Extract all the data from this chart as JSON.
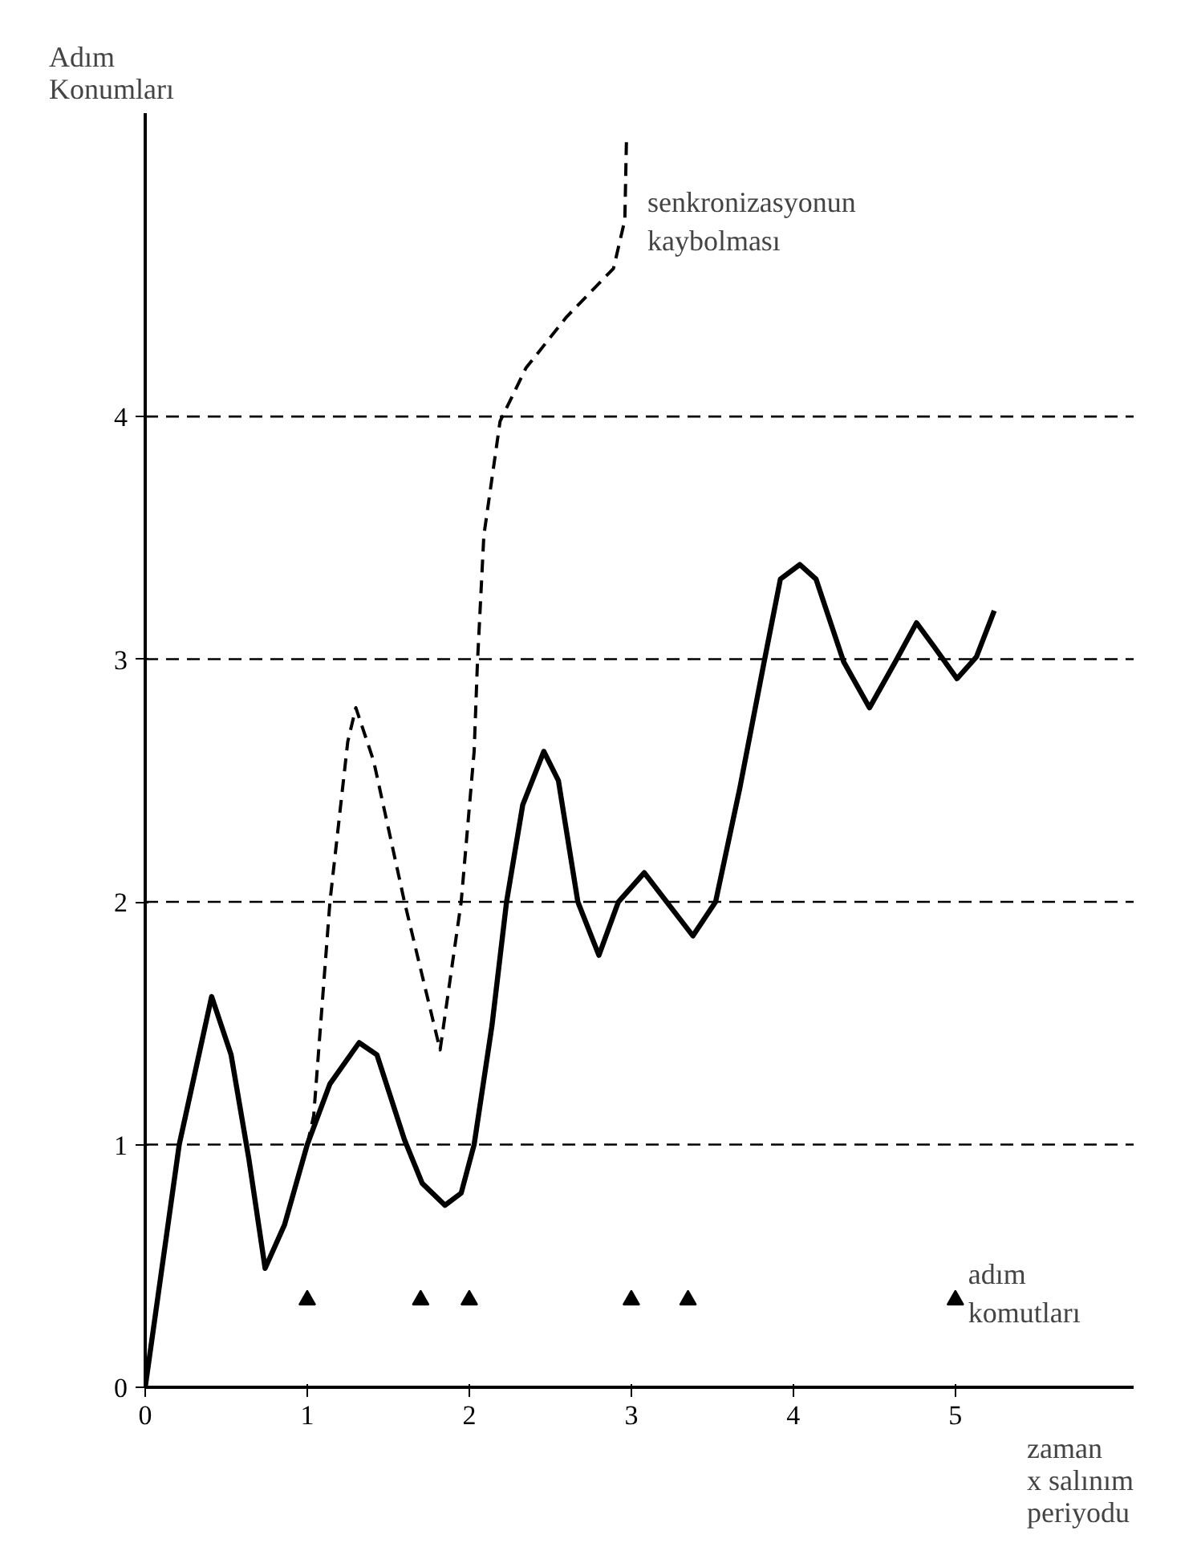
{
  "chart_data": {
    "type": "line",
    "ylabel": "Adım\nKonumları",
    "xlabel": "zaman\nx salınım\nperiyodu",
    "xlim": [
      0,
      6.1
    ],
    "ylim": [
      0,
      5.25
    ],
    "xticks": [
      0,
      1,
      2,
      3,
      4,
      5
    ],
    "yticks": [
      0,
      1,
      2,
      3,
      4
    ],
    "grid": false,
    "series": [
      {
        "color": "#000000",
        "line_style": "solid",
        "x": [
          0,
          0.21,
          0.41,
          0.53,
          0.64,
          0.74,
          0.86,
          1.0,
          1.14,
          1.32,
          1.43,
          1.6,
          1.71,
          1.85,
          1.95,
          2.03,
          2.14,
          2.23,
          2.33,
          2.46,
          2.55,
          2.67,
          2.8,
          2.92,
          3.08,
          3.38,
          3.52,
          3.67,
          3.82,
          3.92,
          4.04,
          4.14,
          4.31,
          4.47,
          4.63,
          4.76,
          4.87,
          5.01,
          5.13,
          5.24
        ],
        "values": [
          0,
          1.0,
          1.61,
          1.37,
          0.94,
          0.49,
          0.67,
          1.0,
          1.25,
          1.42,
          1.37,
          1.02,
          0.84,
          0.75,
          0.8,
          1.0,
          1.49,
          2.0,
          2.4,
          2.62,
          2.5,
          2.0,
          1.78,
          2.0,
          2.12,
          1.86,
          2.0,
          2.47,
          2.99,
          3.33,
          3.39,
          3.33,
          2.99,
          2.8,
          2.99,
          3.15,
          3.05,
          2.92,
          3.01,
          3.2
        ]
      },
      {
        "color": "#000000",
        "line_style": "dashed",
        "x": [
          1.0,
          1.04,
          1.14,
          1.25,
          1.3,
          1.41,
          1.6,
          1.82,
          1.95,
          2.03,
          2.05,
          2.09,
          2.19,
          2.35,
          2.6,
          2.89,
          2.96,
          2.97
        ],
        "values": [
          1.0,
          1.12,
          2.0,
          2.66,
          2.8,
          2.58,
          2.0,
          1.39,
          2.0,
          2.62,
          2.98,
          3.51,
          3.98,
          4.2,
          4.41,
          4.61,
          4.81,
          5.14
        ]
      },
      {
        "type": "scatter",
        "name": "adım\nkomutları",
        "color": "#000000",
        "marker": "triangle",
        "x": [
          1,
          1.7,
          2,
          3,
          3.35,
          5
        ],
        "values": [
          0.36,
          0.36,
          0.36,
          0.36,
          0.36,
          0.36
        ]
      }
    ],
    "ref_lines": [
      {
        "axis": "y",
        "value": 1,
        "line_style": "dashed",
        "color": "#000000"
      },
      {
        "axis": "y",
        "value": 2,
        "line_style": "dashed",
        "color": "#000000"
      },
      {
        "axis": "y",
        "value": 3,
        "line_style": "dashed",
        "color": "#000000"
      },
      {
        "axis": "y",
        "value": 4,
        "line_style": "dashed",
        "color": "#000000"
      }
    ],
    "annotations": [
      {
        "text": "senkronizasyonun\nkaybolması",
        "x": 3.0,
        "y": 4.95
      }
    ]
  }
}
